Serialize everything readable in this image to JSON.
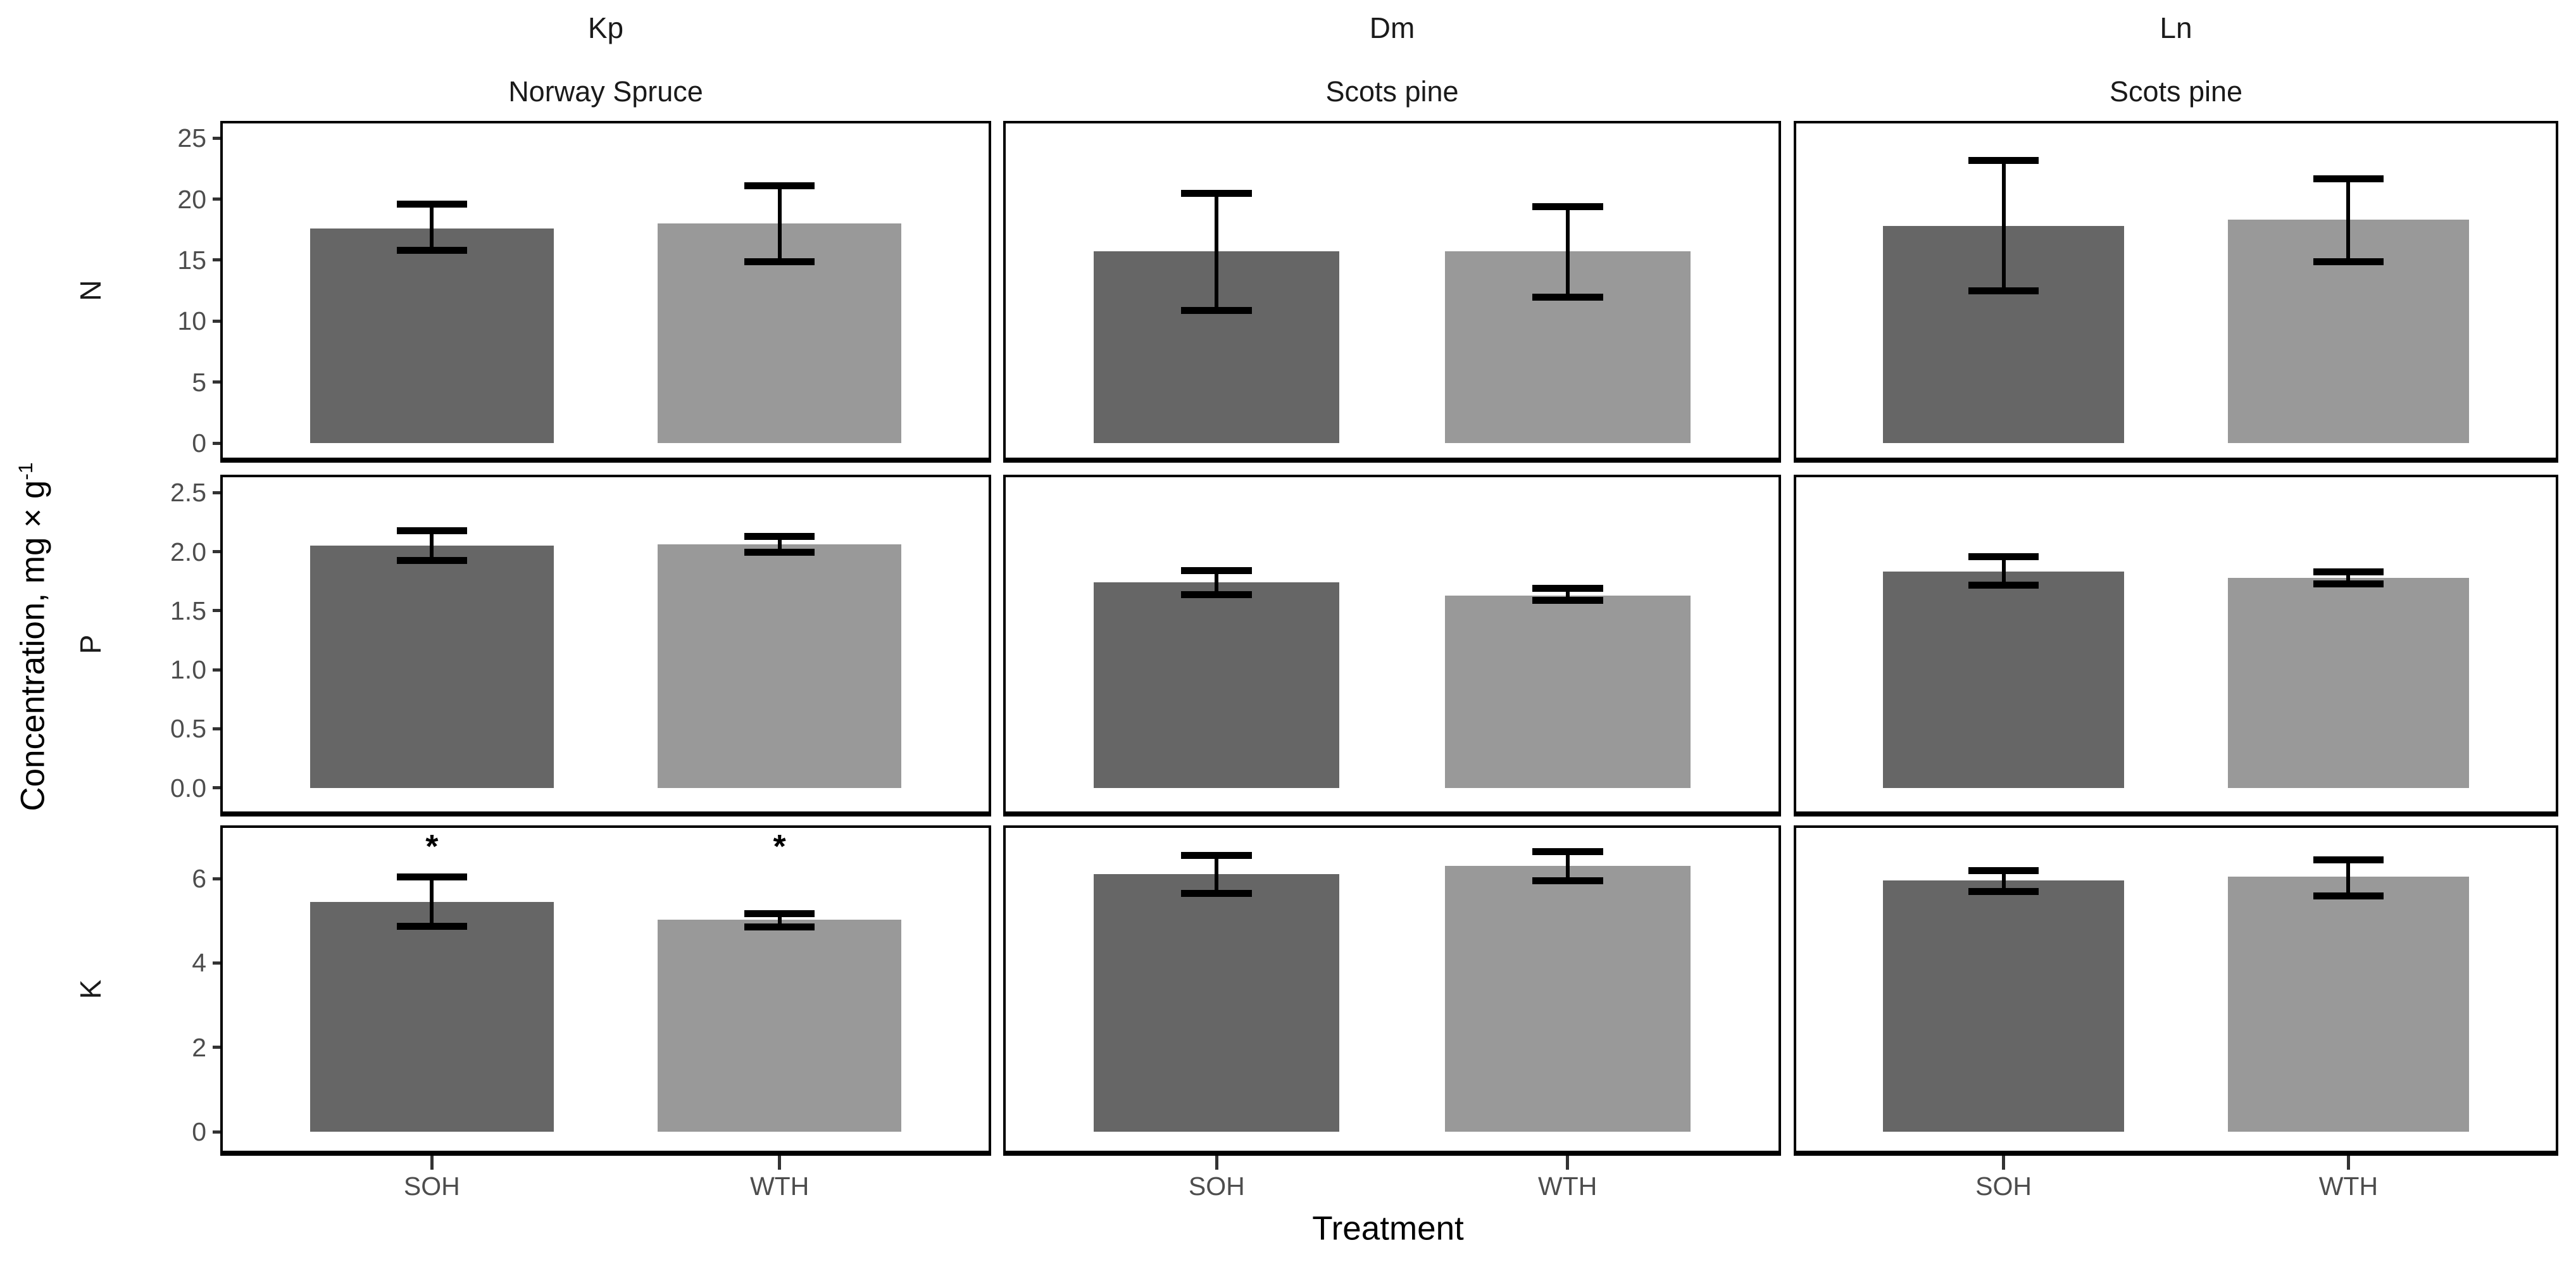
{
  "chart_data": {
    "type": "bar",
    "title": "",
    "xlabel": "Treatment",
    "ylabel": "Concentration, mg × g⁻¹",
    "ylabel_base": "Concentration, mg × g",
    "ylabel_exponent": "-1",
    "legend_position": "none",
    "grid": false,
    "categories": [
      "SOH",
      "WTH"
    ],
    "bar_fills": [
      "#666666",
      "#999999"
    ],
    "error_bar_color": "#000000",
    "tick_label_color": "#4d4d4d",
    "col_facets": [
      {
        "id": "Kp",
        "label": "Kp",
        "sublabel": "Norway Spruce"
      },
      {
        "id": "Dm",
        "label": "Dm",
        "sublabel": "Scots pine"
      },
      {
        "id": "Ln",
        "label": "Ln",
        "sublabel": "Scots pine"
      }
    ],
    "row_facets": [
      {
        "id": "N",
        "label": "N",
        "ticks": [
          0,
          5,
          10,
          15,
          20,
          25
        ],
        "tick_labels": [
          "0",
          "5",
          "10",
          "15",
          "20",
          "25"
        ],
        "ylim": [
          -1.19,
          26.2
        ]
      },
      {
        "id": "P",
        "label": "P",
        "ticks": [
          0,
          0.5,
          1.0,
          1.5,
          2.0,
          2.5
        ],
        "tick_labels": [
          "0.0",
          "0.5",
          "1.0",
          "1.5",
          "2.0",
          "2.5"
        ],
        "ylim": [
          -0.2,
          2.63
        ]
      },
      {
        "id": "K",
        "label": "K",
        "ticks": [
          0,
          2,
          4,
          6
        ],
        "tick_labels": [
          "0",
          "2",
          "4",
          "6"
        ],
        "ylim": [
          -0.45,
          7.2
        ]
      }
    ],
    "panels": [
      {
        "row": "N",
        "col": "Kp",
        "bars": [
          {
            "category": "SOH",
            "value": 17.6,
            "err_low": 15.8,
            "err_high": 19.6,
            "sig": ""
          },
          {
            "category": "WTH",
            "value": 18.0,
            "err_low": 14.9,
            "err_high": 21.1,
            "sig": ""
          }
        ]
      },
      {
        "row": "N",
        "col": "Dm",
        "bars": [
          {
            "category": "SOH",
            "value": 15.7,
            "err_low": 10.9,
            "err_high": 20.5,
            "sig": ""
          },
          {
            "category": "WTH",
            "value": 15.7,
            "err_low": 12.0,
            "err_high": 19.4,
            "sig": ""
          }
        ]
      },
      {
        "row": "N",
        "col": "Ln",
        "bars": [
          {
            "category": "SOH",
            "value": 17.8,
            "err_low": 12.5,
            "err_high": 23.2,
            "sig": ""
          },
          {
            "category": "WTH",
            "value": 18.3,
            "err_low": 14.9,
            "err_high": 21.7,
            "sig": ""
          }
        ]
      },
      {
        "row": "P",
        "col": "Kp",
        "bars": [
          {
            "category": "SOH",
            "value": 2.05,
            "err_low": 1.93,
            "err_high": 2.18,
            "sig": ""
          },
          {
            "category": "WTH",
            "value": 2.06,
            "err_low": 2.0,
            "err_high": 2.13,
            "sig": ""
          }
        ]
      },
      {
        "row": "P",
        "col": "Dm",
        "bars": [
          {
            "category": "SOH",
            "value": 1.74,
            "err_low": 1.64,
            "err_high": 1.84,
            "sig": ""
          },
          {
            "category": "WTH",
            "value": 1.63,
            "err_low": 1.59,
            "err_high": 1.69,
            "sig": ""
          }
        ]
      },
      {
        "row": "P",
        "col": "Ln",
        "bars": [
          {
            "category": "SOH",
            "value": 1.83,
            "err_low": 1.72,
            "err_high": 1.96,
            "sig": ""
          },
          {
            "category": "WTH",
            "value": 1.78,
            "err_low": 1.73,
            "err_high": 1.83,
            "sig": ""
          }
        ]
      },
      {
        "row": "K",
        "col": "Kp",
        "bars": [
          {
            "category": "SOH",
            "value": 5.45,
            "err_low": 4.88,
            "err_high": 6.05,
            "sig": "*"
          },
          {
            "category": "WTH",
            "value": 5.02,
            "err_low": 4.86,
            "err_high": 5.18,
            "sig": "*"
          }
        ]
      },
      {
        "row": "K",
        "col": "Dm",
        "bars": [
          {
            "category": "SOH",
            "value": 6.1,
            "err_low": 5.65,
            "err_high": 6.55,
            "sig": ""
          },
          {
            "category": "WTH",
            "value": 6.3,
            "err_low": 5.95,
            "err_high": 6.65,
            "sig": ""
          }
        ]
      },
      {
        "row": "K",
        "col": "Ln",
        "bars": [
          {
            "category": "SOH",
            "value": 5.95,
            "err_low": 5.7,
            "err_high": 6.2,
            "sig": ""
          },
          {
            "category": "WTH",
            "value": 6.05,
            "err_low": 5.6,
            "err_high": 6.45,
            "sig": ""
          }
        ]
      }
    ]
  }
}
